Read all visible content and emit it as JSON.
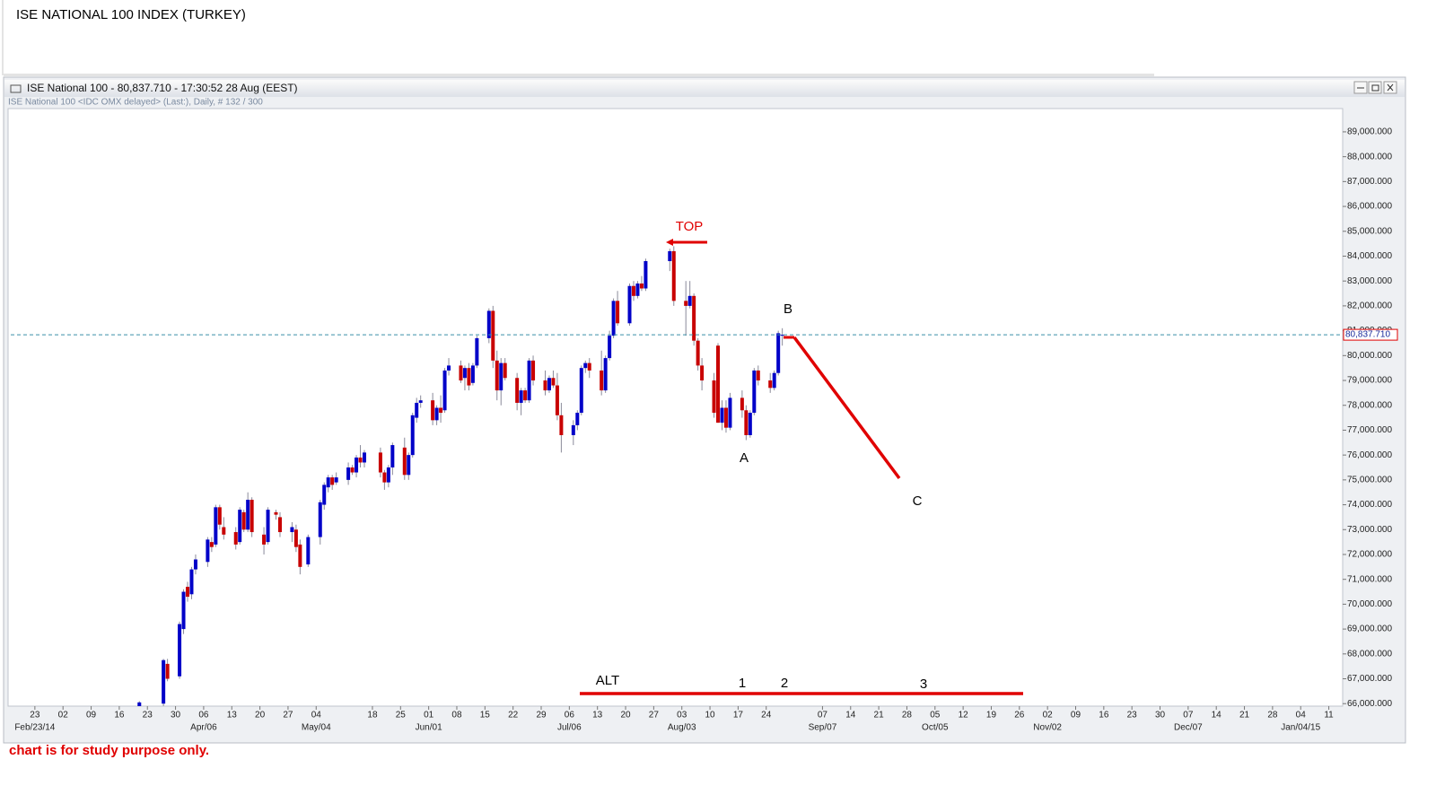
{
  "page": {
    "title": "ISE NATIONAL 100 INDEX (TURKEY)",
    "window_title": "ISE National 100 - 80,837.710 - 17:30:52  28 Aug (EEST)",
    "subtitle": "ISE National 100 <IDC OMX delayed> (Last:), Daily, # 132 / 300",
    "footnote": "chart is for study purpose only."
  },
  "chart_data": {
    "type": "candlestick",
    "dates": [
      "2014-03-21",
      "2014-03-27",
      "2014-03-28",
      "2014-03-31",
      "2014-04-01",
      "2014-04-02",
      "2014-04-03",
      "2014-04-04",
      "2014-04-07",
      "2014-04-08",
      "2014-04-09",
      "2014-04-10",
      "2014-04-11",
      "2014-04-14",
      "2014-04-15",
      "2014-04-16",
      "2014-04-17",
      "2014-04-18",
      "2014-04-21",
      "2014-04-22",
      "2014-04-24",
      "2014-04-25",
      "2014-04-28",
      "2014-04-29",
      "2014-04-30",
      "2014-05-02",
      "2014-05-05",
      "2014-05-06",
      "2014-05-07",
      "2014-05-08",
      "2014-05-09",
      "2014-05-12",
      "2014-05-13",
      "2014-05-14",
      "2014-05-15",
      "2014-05-16",
      "2014-05-20",
      "2014-05-21",
      "2014-05-22",
      "2014-05-23",
      "2014-05-26",
      "2014-05-27",
      "2014-05-28",
      "2014-05-29",
      "2014-05-30",
      "2014-06-02",
      "2014-06-03",
      "2014-06-04",
      "2014-06-05",
      "2014-06-06",
      "2014-06-09",
      "2014-06-10",
      "2014-06-11",
      "2014-06-12",
      "2014-06-13",
      "2014-06-16",
      "2014-06-17",
      "2014-06-18",
      "2014-06-19",
      "2014-06-20",
      "2014-06-23",
      "2014-06-24",
      "2014-06-25",
      "2014-06-26",
      "2014-06-27",
      "2014-06-30",
      "2014-07-01",
      "2014-07-02",
      "2014-07-03",
      "2014-07-04",
      "2014-07-07",
      "2014-07-08",
      "2014-07-09",
      "2014-07-10",
      "2014-07-11",
      "2014-07-14",
      "2014-07-15",
      "2014-07-16",
      "2014-07-17",
      "2014-07-18",
      "2014-07-21",
      "2014-07-22",
      "2014-07-23",
      "2014-07-24",
      "2014-07-25",
      "2014-07-31",
      "2014-08-01",
      "2014-08-04",
      "2014-08-05",
      "2014-08-06",
      "2014-08-07",
      "2014-08-08",
      "2014-08-11",
      "2014-08-12",
      "2014-08-13",
      "2014-08-14",
      "2014-08-15",
      "2014-08-18",
      "2014-08-19",
      "2014-08-20",
      "2014-08-21",
      "2014-08-22",
      "2014-08-25",
      "2014-08-26",
      "2014-08-27",
      "2014-08-28"
    ],
    "open": [
      65800,
      66000,
      67600,
      67100,
      69000,
      70700,
      70400,
      71400,
      71700,
      72500,
      72400,
      73900,
      73100,
      72900,
      72500,
      73700,
      73000,
      74200,
      72800,
      72500,
      73700,
      73500,
      72900,
      73000,
      72400,
      71600,
      72700,
      74000,
      74700,
      75100,
      74900,
      75000,
      75500,
      75300,
      75900,
      75700,
      76100,
      75300,
      74900,
      75500,
      76300,
      75200,
      76000,
      77500,
      78100,
      78200,
      77400,
      77900,
      77800,
      79400,
      79600,
      79100,
      79500,
      78900,
      79600,
      80700,
      81800,
      79800,
      78600,
      79700,
      79100,
      78100,
      78600,
      78200,
      79800,
      79000,
      78600,
      79100,
      78800,
      77600,
      76800,
      77200,
      77700,
      79500,
      79700,
      79400,
      78600,
      79900,
      80800,
      82200,
      81300,
      82800,
      82400,
      82900,
      82700,
      83800,
      84200,
      82200,
      82000,
      82400,
      80600,
      79600,
      79000,
      80400,
      77300,
      77900,
      77100,
      78300,
      77800,
      76800,
      77700,
      79400,
      79000,
      78700,
      79300,
      80800
    ],
    "high": [
      66100,
      67800,
      67800,
      69300,
      70600,
      70900,
      71500,
      72000,
      72700,
      72700,
      74000,
      74000,
      73500,
      73100,
      73900,
      73800,
      74500,
      74300,
      73100,
      73900,
      73800,
      73700,
      73300,
      73200,
      72600,
      72800,
      74200,
      74900,
      75200,
      75200,
      75300,
      75700,
      75600,
      76000,
      76400,
      76200,
      76300,
      75400,
      75600,
      76500,
      76700,
      76100,
      77700,
      78300,
      78400,
      78500,
      78000,
      78400,
      79500,
      79900,
      79800,
      79600,
      79700,
      79700,
      80800,
      81900,
      82000,
      80200,
      79900,
      79900,
      79300,
      78700,
      78700,
      79900,
      80000,
      79400,
      79200,
      79400,
      79300,
      78100,
      77400,
      77800,
      79600,
      79800,
      79900,
      80200,
      80000,
      81000,
      82300,
      82600,
      82900,
      83000,
      83000,
      83200,
      83900,
      84300,
      84400,
      83000,
      83000,
      82500,
      80700,
      79900,
      79300,
      80500,
      78200,
      78200,
      78500,
      78600,
      78000,
      77800,
      79500,
      79600,
      79300,
      79400,
      81000,
      81100
    ],
    "low": [
      65700,
      65900,
      66900,
      67000,
      68800,
      70100,
      70200,
      71200,
      71500,
      72100,
      72300,
      73000,
      72600,
      72200,
      72400,
      72900,
      72900,
      72700,
      72000,
      72400,
      73400,
      72700,
      72500,
      72100,
      71200,
      71500,
      72400,
      73800,
      74500,
      74600,
      74800,
      74800,
      75200,
      75100,
      75500,
      75500,
      75100,
      74600,
      74700,
      75200,
      75000,
      75000,
      75900,
      77300,
      77900,
      77200,
      77200,
      77300,
      77700,
      79200,
      78900,
      78600,
      78600,
      78800,
      79500,
      80500,
      79500,
      78200,
      78000,
      79000,
      77800,
      77600,
      78100,
      78100,
      78800,
      78400,
      78500,
      78700,
      77400,
      76100,
      76400,
      77000,
      77600,
      79300,
      79100,
      78400,
      78500,
      79800,
      80700,
      81200,
      81200,
      82200,
      82300,
      82600,
      82600,
      83400,
      82000,
      80800,
      81900,
      80400,
      79400,
      78600,
      77500,
      77300,
      77000,
      76900,
      77000,
      77500,
      76600,
      76700,
      77600,
      78800,
      78500,
      78600,
      79200,
      80400
    ],
    "close": [
      66050,
      67750,
      67000,
      69200,
      70500,
      70300,
      71400,
      71800,
      72600,
      72300,
      73900,
      73200,
      72800,
      72400,
      73800,
      73000,
      74200,
      72900,
      72400,
      73800,
      73600,
      72900,
      73100,
      72300,
      71500,
      72700,
      74100,
      74800,
      75100,
      74800,
      75100,
      75500,
      75300,
      75900,
      75700,
      76100,
      75300,
      74900,
      75500,
      76400,
      75200,
      76000,
      77600,
      78100,
      78200,
      77400,
      77900,
      77700,
      79400,
      79600,
      79000,
      79500,
      78800,
      79600,
      80700,
      81800,
      79800,
      78600,
      79700,
      79100,
      78100,
      78600,
      78200,
      79800,
      79000,
      78600,
      79100,
      78800,
      77600,
      76800,
      77200,
      77700,
      79500,
      79700,
      79400,
      78600,
      79900,
      80800,
      82200,
      81300,
      82800,
      82400,
      82900,
      82700,
      83800,
      84200,
      82200,
      82000,
      82400,
      80600,
      79600,
      79000,
      77700,
      77300,
      77900,
      77100,
      78300,
      77800,
      76800,
      77700,
      79400,
      79000,
      78700,
      79300,
      80900,
      80837.71
    ],
    "up_color": "#0000c8",
    "down_color": "#c80000",
    "xlim": [
      "2014-02-17",
      "2015-01-14"
    ],
    "ylim": [
      65900,
      89900
    ],
    "yticks": [
      {
        "value": 66000,
        "label": "66,000.000"
      },
      {
        "value": 67000,
        "label": "67,000.000"
      },
      {
        "value": 68000,
        "label": "68,000.000"
      },
      {
        "value": 69000,
        "label": "69,000.000"
      },
      {
        "value": 70000,
        "label": "70,000.000"
      },
      {
        "value": 71000,
        "label": "71,000.000"
      },
      {
        "value": 72000,
        "label": "72,000.000"
      },
      {
        "value": 73000,
        "label": "73,000.000"
      },
      {
        "value": 74000,
        "label": "74,000.000"
      },
      {
        "value": 75000,
        "label": "75,000.000"
      },
      {
        "value": 76000,
        "label": "76,000.000"
      },
      {
        "value": 77000,
        "label": "77,000.000"
      },
      {
        "value": 78000,
        "label": "78,000.000"
      },
      {
        "value": 79000,
        "label": "79,000.000"
      },
      {
        "value": 80000,
        "label": "80,000.000"
      },
      {
        "value": 81000,
        "label": "81,000.000"
      },
      {
        "value": 82000,
        "label": "82,000.000"
      },
      {
        "value": 83000,
        "label": "83,000.000"
      },
      {
        "value": 84000,
        "label": "84,000.000"
      },
      {
        "value": 85000,
        "label": "85,000.000"
      },
      {
        "value": 86000,
        "label": "86,000.000"
      },
      {
        "value": 87000,
        "label": "87,000.000"
      },
      {
        "value": 88000,
        "label": "88,000.000"
      },
      {
        "value": 89000,
        "label": "89,000.000"
      }
    ],
    "xticks": [
      {
        "value": "2014-02-23",
        "label": "23"
      },
      {
        "value": "2014-03-02",
        "label": "02"
      },
      {
        "value": "2014-03-09",
        "label": "09"
      },
      {
        "value": "2014-03-16",
        "label": "16"
      },
      {
        "value": "2014-03-23",
        "label": "23"
      },
      {
        "value": "2014-03-30",
        "label": "30"
      },
      {
        "value": "2014-04-06",
        "label": "06"
      },
      {
        "value": "2014-04-13",
        "label": "13"
      },
      {
        "value": "2014-04-20",
        "label": "20"
      },
      {
        "value": "2014-04-27",
        "label": "27"
      },
      {
        "value": "2014-05-04",
        "label": "04"
      },
      {
        "value": "2014-05-18",
        "label": "18"
      },
      {
        "value": "2014-05-25",
        "label": "25"
      },
      {
        "value": "2014-06-01",
        "label": "01"
      },
      {
        "value": "2014-06-08",
        "label": "08"
      },
      {
        "value": "2014-06-15",
        "label": "15"
      },
      {
        "value": "2014-06-22",
        "label": "22"
      },
      {
        "value": "2014-06-29",
        "label": "29"
      },
      {
        "value": "2014-07-06",
        "label": "06"
      },
      {
        "value": "2014-07-13",
        "label": "13"
      },
      {
        "value": "2014-07-20",
        "label": "20"
      },
      {
        "value": "2014-07-27",
        "label": "27"
      },
      {
        "value": "2014-08-03",
        "label": "03"
      },
      {
        "value": "2014-08-10",
        "label": "10"
      },
      {
        "value": "2014-08-17",
        "label": "17"
      },
      {
        "value": "2014-08-24",
        "label": "24"
      },
      {
        "value": "2014-09-07",
        "label": "07"
      },
      {
        "value": "2014-09-14",
        "label": "14"
      },
      {
        "value": "2014-09-21",
        "label": "21"
      },
      {
        "value": "2014-09-28",
        "label": "28"
      },
      {
        "value": "2014-10-05",
        "label": "05"
      },
      {
        "value": "2014-10-12",
        "label": "12"
      },
      {
        "value": "2014-10-19",
        "label": "19"
      },
      {
        "value": "2014-10-26",
        "label": "26"
      },
      {
        "value": "2014-11-02",
        "label": "02"
      },
      {
        "value": "2014-11-09",
        "label": "09"
      },
      {
        "value": "2014-11-16",
        "label": "16"
      },
      {
        "value": "2014-11-23",
        "label": "23"
      },
      {
        "value": "2014-11-30",
        "label": "30"
      },
      {
        "value": "2014-12-07",
        "label": "07"
      },
      {
        "value": "2014-12-14",
        "label": "14"
      },
      {
        "value": "2014-12-21",
        "label": "21"
      },
      {
        "value": "2014-12-28",
        "label": "28"
      },
      {
        "value": "2015-01-04",
        "label": "04"
      },
      {
        "value": "2015-01-11",
        "label": "11"
      }
    ],
    "x_month_ticks": [
      {
        "value": "2014-02-23",
        "label": "Feb/23/14"
      },
      {
        "value": "2014-04-06",
        "label": "Apr/06"
      },
      {
        "value": "2014-05-04",
        "label": "May/04"
      },
      {
        "value": "2014-06-01",
        "label": "Jun/01"
      },
      {
        "value": "2014-07-06",
        "label": "Jul/06"
      },
      {
        "value": "2014-08-03",
        "label": "Aug/03"
      },
      {
        "value": "2014-09-07",
        "label": "Sep/07"
      },
      {
        "value": "2014-10-05",
        "label": "Oct/05"
      },
      {
        "value": "2014-11-02",
        "label": "Nov/02"
      },
      {
        "value": "2014-12-07",
        "label": "Dec/07"
      },
      {
        "value": "2015-01-04",
        "label": "Jan/04/15"
      }
    ],
    "last_price": {
      "value": 80837.71,
      "label": "80,837.710"
    },
    "annotations": {
      "top": "TOP",
      "a": "A",
      "b": "B",
      "c": "C",
      "alt": "ALT",
      "w1": "1",
      "w2": "2",
      "w3": "3"
    }
  }
}
